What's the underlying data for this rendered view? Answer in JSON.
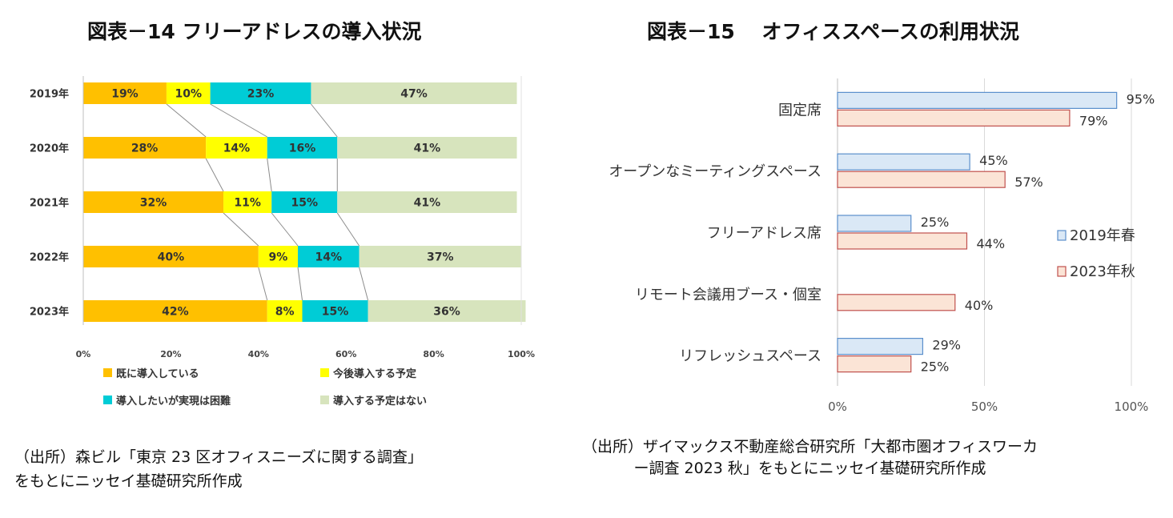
{
  "figure14": {
    "title": "図表－14  フリーアドレスの導入状況",
    "source_line1": "（出所）森ビル「東京 23 区オフィスニーズに関する調査」",
    "source_line2": "をもとにニッセイ基礎研究所作成"
  },
  "figure15": {
    "title": "図表－15　 オフィススペースの利用状況",
    "source_line1": "（出所）ザイマックス不動産総合研究所「大都市圏オフィスワーカ",
    "source_line2": "ー調査 2023 秋」をもとにニッセイ基礎研究所作成"
  },
  "chart_data": [
    {
      "type": "bar",
      "orientation": "horizontal",
      "stacked": "percent",
      "title": "図表－14  フリーアドレスの導入状況",
      "categories": [
        "2019年",
        "2020年",
        "2021年",
        "2022年",
        "2023年"
      ],
      "series": [
        {
          "name": "既に導入している",
          "color": "#FFC000",
          "values": [
            19,
            28,
            32,
            40,
            42
          ]
        },
        {
          "name": "今後導入する予定",
          "color": "#FFFF00",
          "values": [
            10,
            14,
            11,
            9,
            8
          ]
        },
        {
          "name": "導入したいが実現は困難",
          "color": "#00CCD6",
          "values": [
            23,
            16,
            15,
            14,
            15
          ]
        },
        {
          "name": "導入する予定はない",
          "color": "#D7E4BD",
          "values": [
            47,
            41,
            41,
            37,
            36
          ]
        }
      ],
      "value_labels": [
        [
          "19%",
          "28%",
          "32%",
          "40%",
          "42%"
        ],
        [
          "10%",
          "14%",
          "11%",
          "9%",
          "8%"
        ],
        [
          "23%",
          "16%",
          "15%",
          "14%",
          "15%"
        ],
        [
          "47%",
          "41%",
          "41%",
          "37%",
          "36%"
        ]
      ],
      "xlim": [
        0,
        100
      ],
      "x_ticks": [
        "0%",
        "20%",
        "40%",
        "60%",
        "80%",
        "100%"
      ],
      "series_lines": true,
      "legend": "bottom"
    },
    {
      "type": "bar",
      "orientation": "horizontal",
      "title": "図表－15　 オフィススペースの利用状況",
      "categories": [
        "固定席",
        "オープンなミーティングスペース",
        "フリーアドレス席",
        "リモート会議用ブース・個室",
        "リフレッシュスペース"
      ],
      "series": [
        {
          "name": "2019年春",
          "color": "#DAE8F6",
          "border": "#5B8FCC",
          "values": [
            95,
            45,
            25,
            null,
            29
          ],
          "labels": [
            "95%",
            "45%",
            "25%",
            "",
            "29%"
          ]
        },
        {
          "name": "2023年秋",
          "color": "#FBE4D6",
          "border": "#C0504D",
          "values": [
            79,
            57,
            44,
            40,
            25
          ],
          "labels": [
            "79%",
            "57%",
            "44%",
            "40%",
            "25%"
          ]
        }
      ],
      "xlim": [
        0,
        100
      ],
      "x_ticks": [
        "0%",
        "50%",
        "100%"
      ],
      "grid": "vertical",
      "legend": "right"
    }
  ]
}
